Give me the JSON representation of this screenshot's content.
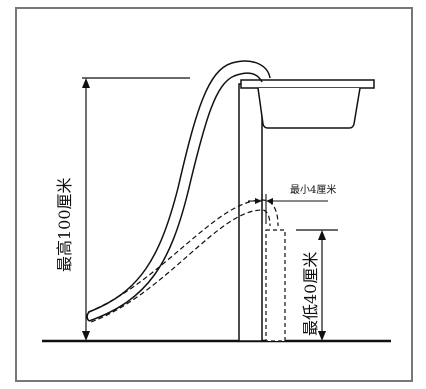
{
  "diagram": {
    "labels": {
      "max_height": "最高100厘米",
      "min_gap": "最小4厘米",
      "min_height": "最低40厘米"
    },
    "colors": {
      "frame": "#777777",
      "line": "#111111",
      "background": "#ffffff"
    }
  }
}
